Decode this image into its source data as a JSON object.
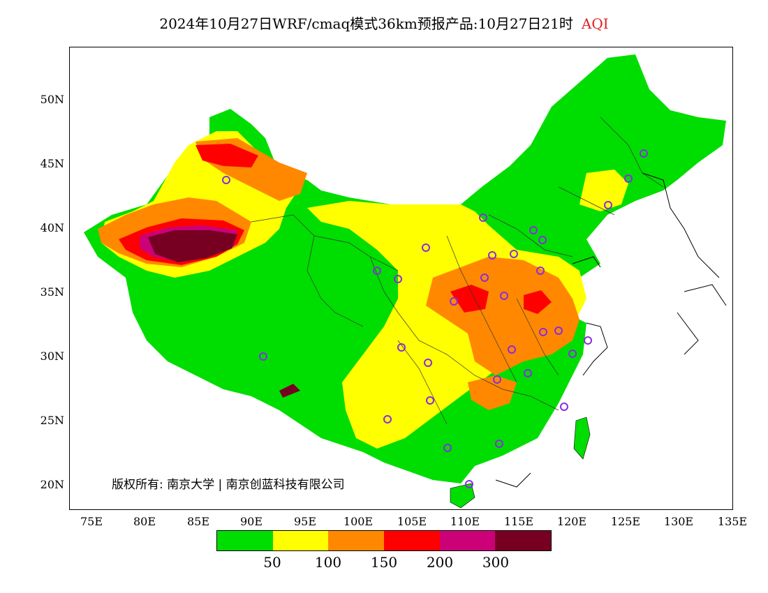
{
  "title": {
    "main": "2024年10月27日WRF/cmaq模式36km预报产品:10月27日21时",
    "variable": "AQI",
    "variable_color": "#e02020"
  },
  "axes": {
    "lat_labels": [
      "50N",
      "45N",
      "40N",
      "35N",
      "30N",
      "25N",
      "20N"
    ],
    "lon_labels": [
      "75E",
      "80E",
      "85E",
      "90E",
      "95E",
      "100E",
      "105E",
      "110E",
      "115E",
      "120E",
      "125E",
      "130E",
      "135E"
    ]
  },
  "copyright": "版权所有: 南京大学 | 南京创蓝科技有限公司",
  "legend": {
    "colors": [
      "#00dd00",
      "#ffff00",
      "#ff8800",
      "#ff0000",
      "#cc0077",
      "#770022"
    ],
    "ticks": [
      "50",
      "100",
      "150",
      "200",
      "300"
    ]
  },
  "palette": {
    "good": "#00dd00",
    "moderate": "#ffff00",
    "usg": "#ff8800",
    "unhealthy": "#ff0000",
    "very_unhealthy": "#cc0077",
    "hazardous": "#770022",
    "station_marker": "#8a2be2"
  }
}
